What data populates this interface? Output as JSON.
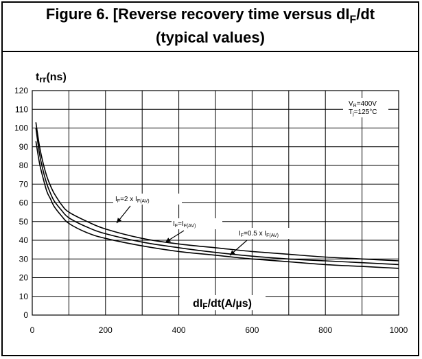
{
  "figure": {
    "title_line1_prefix": "Figure 6. [Reverse recovery time versus dI",
    "title_line1_sub": "F",
    "title_line1_suffix": "/dt",
    "title_line2": "(typical values)"
  },
  "chart_data": {
    "type": "line",
    "title": "Figure 6. [Reverse recovery time versus dIF/dt (typical values)",
    "ylabel_main": "t",
    "ylabel_sub": "rr",
    "ylabel_unit": "(ns)",
    "xlabel_prefix": "dI",
    "xlabel_sub": "F",
    "xlabel_suffix": "/dt(A/µs)",
    "xlim": [
      0,
      1000
    ],
    "ylim": [
      0,
      120
    ],
    "xticks": [
      0,
      200,
      400,
      600,
      800,
      1000
    ],
    "yticks": [
      0,
      10,
      20,
      30,
      40,
      50,
      60,
      70,
      80,
      90,
      100,
      110,
      120
    ],
    "xgrid_step": 100,
    "ygrid_step": 10,
    "grid": true,
    "conditions": [
      {
        "main": "V",
        "sub": "R",
        "rest": "=400V"
      },
      {
        "main": "T",
        "sub": "j",
        "rest": "=125°C"
      }
    ],
    "series": [
      {
        "label_parts": [
          {
            "t": "I",
            "sub": false
          },
          {
            "t": "F",
            "sub": true
          },
          {
            "t": "=2 x I",
            "sub": false
          },
          {
            "t": "F(AV)",
            "sub": true
          }
        ],
        "color": "#000000",
        "x": [
          10,
          20,
          30,
          40,
          50,
          60,
          80,
          100,
          150,
          200,
          300,
          400,
          500,
          600,
          700,
          800,
          900,
          1000
        ],
        "y": [
          103,
          90,
          81,
          74,
          69,
          65,
          59,
          55,
          50,
          46,
          41,
          38,
          36,
          34,
          32.5,
          31,
          30,
          29
        ]
      },
      {
        "label_parts": [
          {
            "t": "I",
            "sub": false
          },
          {
            "t": "F",
            "sub": true
          },
          {
            "t": "=I",
            "sub": false
          },
          {
            "t": "F(AV)",
            "sub": true
          }
        ],
        "color": "#000000",
        "x": [
          10,
          20,
          30,
          40,
          50,
          60,
          80,
          100,
          150,
          200,
          300,
          400,
          500,
          600,
          700,
          800,
          900,
          1000
        ],
        "y": [
          100,
          86,
          77,
          70,
          65,
          61,
          56,
          52,
          47,
          43.5,
          39,
          36,
          33.5,
          31.5,
          30,
          29,
          28,
          27
        ]
      },
      {
        "label_parts": [
          {
            "t": "I",
            "sub": false
          },
          {
            "t": "F",
            "sub": true
          },
          {
            "t": "=0.5 x I",
            "sub": false
          },
          {
            "t": "F(AV)",
            "sub": true
          }
        ],
        "color": "#000000",
        "x": [
          10,
          20,
          30,
          40,
          50,
          60,
          80,
          100,
          150,
          200,
          300,
          400,
          500,
          600,
          700,
          800,
          900,
          1000
        ],
        "y": [
          93,
          81,
          73,
          66,
          62,
          58,
          53,
          49,
          44,
          41,
          37,
          34,
          32,
          30,
          28.5,
          27,
          26,
          25
        ]
      }
    ]
  }
}
